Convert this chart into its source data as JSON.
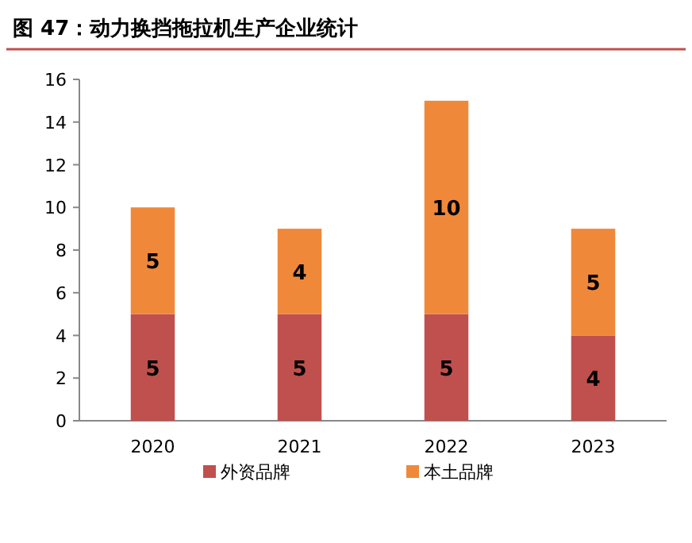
{
  "chart_data": {
    "type": "bar",
    "title": "图 47：动力换挡拖拉机生产企业统计",
    "stacked": true,
    "categories": [
      "2020",
      "2021",
      "2022",
      "2023"
    ],
    "series": [
      {
        "name": "外资品牌",
        "color": "#c0504d",
        "values": [
          5,
          5,
          5,
          4
        ]
      },
      {
        "name": "本土品牌",
        "color": "#f0883a",
        "values": [
          5,
          4,
          10,
          5
        ]
      }
    ],
    "ylim": [
      0,
      16
    ],
    "yticks": [
      0,
      2,
      4,
      6,
      8,
      10,
      12,
      14,
      16
    ],
    "data_labels": true,
    "legend": "bottom",
    "grid": false
  }
}
